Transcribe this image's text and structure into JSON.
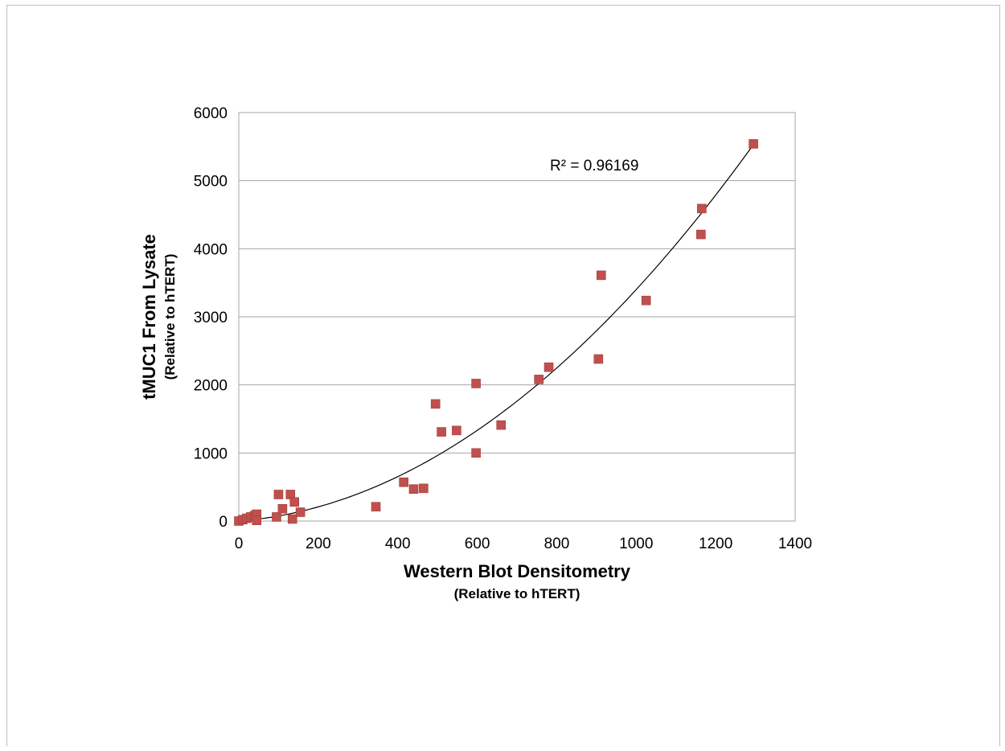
{
  "chart_data": {
    "type": "scatter",
    "xlabel": "Western Blot Densitometry",
    "xlabel_sub": "(Relative to hTERT)",
    "ylabel": "tMUC1 From Lysate",
    "ylabel_sub": "(Relative to hTERT)",
    "xlim": [
      0,
      1400
    ],
    "ylim": [
      0,
      6000
    ],
    "xticks": [
      "0",
      "200",
      "400",
      "600",
      "800",
      "1000",
      "1200",
      "1400"
    ],
    "yticks": [
      "0",
      "1000",
      "2000",
      "3000",
      "4000",
      "5000",
      "6000"
    ],
    "grid": "horizontal",
    "annotation": "R² = 0.96169",
    "marker_color": "#c0504d",
    "trendline_color": "#000000",
    "trendline": {
      "type": "polynomial",
      "degree": 2,
      "coefficients": [
        0.00295,
        0.45,
        0
      ]
    },
    "points": [
      {
        "x": 0,
        "y": 0
      },
      {
        "x": 10,
        "y": 20
      },
      {
        "x": 20,
        "y": 40
      },
      {
        "x": 30,
        "y": 60
      },
      {
        "x": 40,
        "y": 80
      },
      {
        "x": 45,
        "y": 100
      },
      {
        "x": 45,
        "y": 10
      },
      {
        "x": 95,
        "y": 60
      },
      {
        "x": 100,
        "y": 390
      },
      {
        "x": 110,
        "y": 180
      },
      {
        "x": 130,
        "y": 390
      },
      {
        "x": 135,
        "y": 30
      },
      {
        "x": 140,
        "y": 280
      },
      {
        "x": 155,
        "y": 130
      },
      {
        "x": 345,
        "y": 210
      },
      {
        "x": 415,
        "y": 570
      },
      {
        "x": 440,
        "y": 470
      },
      {
        "x": 465,
        "y": 480
      },
      {
        "x": 495,
        "y": 1720
      },
      {
        "x": 510,
        "y": 1310
      },
      {
        "x": 548,
        "y": 1330
      },
      {
        "x": 597,
        "y": 2020
      },
      {
        "x": 597,
        "y": 1000
      },
      {
        "x": 660,
        "y": 1410
      },
      {
        "x": 755,
        "y": 2080
      },
      {
        "x": 780,
        "y": 2260
      },
      {
        "x": 905,
        "y": 2380
      },
      {
        "x": 912,
        "y": 3610
      },
      {
        "x": 1025,
        "y": 3240
      },
      {
        "x": 1163,
        "y": 4210
      },
      {
        "x": 1165,
        "y": 4590
      },
      {
        "x": 1295,
        "y": 5540
      }
    ]
  }
}
